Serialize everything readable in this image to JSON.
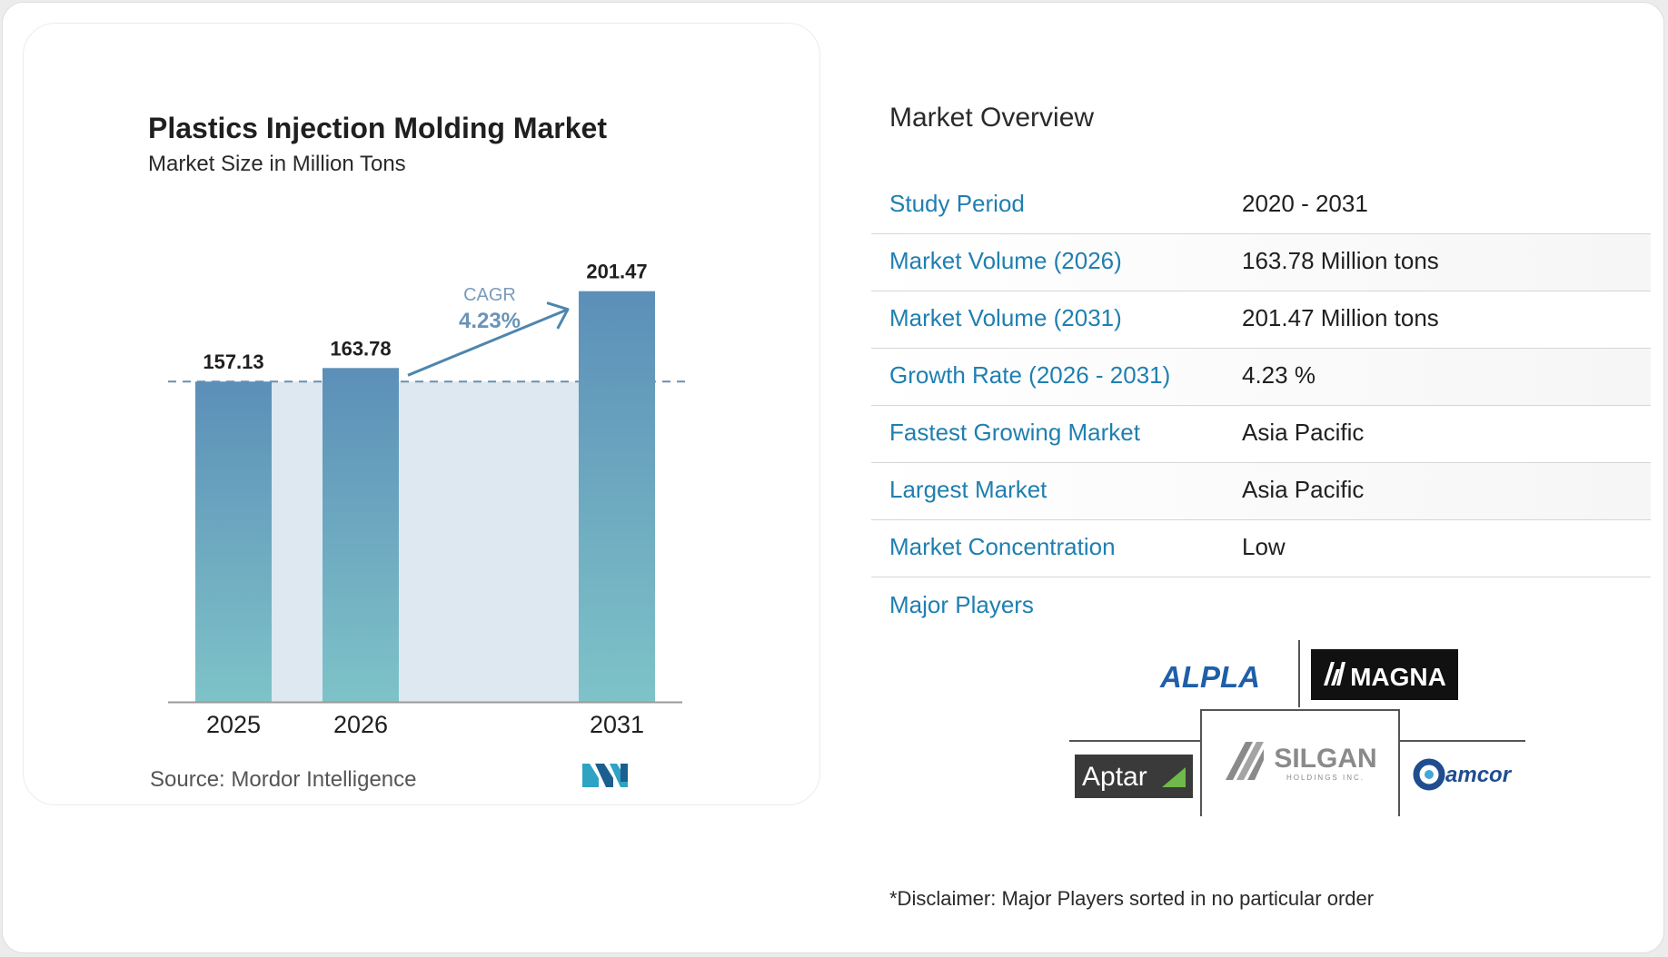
{
  "chart": {
    "title": "Plastics Injection Molding Market",
    "subtitle": "Market Size in Million Tons",
    "source": "Source: Mordor Intelligence",
    "logo_name": "mordor-intelligence-logo"
  },
  "chart_data": {
    "type": "bar",
    "categories": [
      "2025",
      "2026",
      "2031"
    ],
    "values": [
      157.13,
      163.78,
      201.47
    ],
    "value_labels": [
      "157.13",
      "163.78",
      "201.47"
    ],
    "title": "Plastics Injection Molding Market",
    "subtitle": "Market Size in Million Tons",
    "ylim": [
      0,
      220
    ],
    "grid": false,
    "annotation": {
      "label": "CAGR",
      "value": "4.23%"
    },
    "colors": {
      "bar_top": "#5c8fb8",
      "bar_bottom": "#7ec3c8",
      "band": "#dde8f1",
      "baseline_dash": "#6a8fae",
      "arrow": "#4e86ad"
    }
  },
  "overview": {
    "title": "Market Overview",
    "rows": [
      {
        "label": "Study Period",
        "value": "2020 - 2031"
      },
      {
        "label": "Market Volume (2026)",
        "value": "163.78 Million tons"
      },
      {
        "label": "Market Volume (2031)",
        "value": "201.47 Million tons"
      },
      {
        "label": "Growth Rate (2026 - 2031)",
        "value": "4.23 %"
      },
      {
        "label": "Fastest Growing Market",
        "value": "Asia Pacific"
      },
      {
        "label": "Largest Market",
        "value": "Asia Pacific"
      },
      {
        "label": "Market Concentration",
        "value": "Low"
      }
    ],
    "players_title": "Major Players",
    "players": {
      "alpla": "ALPLA",
      "magna": "MAGNA",
      "aptar": "Aptar",
      "silgan": "SILGAN",
      "silgan_sub": "HOLDINGS INC.",
      "amcor": "amcor"
    },
    "disclaimer": "*Disclaimer: Major Players sorted in no particular order"
  },
  "colors": {
    "accent": "#1f7fb0",
    "text": "#1f1f1f"
  }
}
